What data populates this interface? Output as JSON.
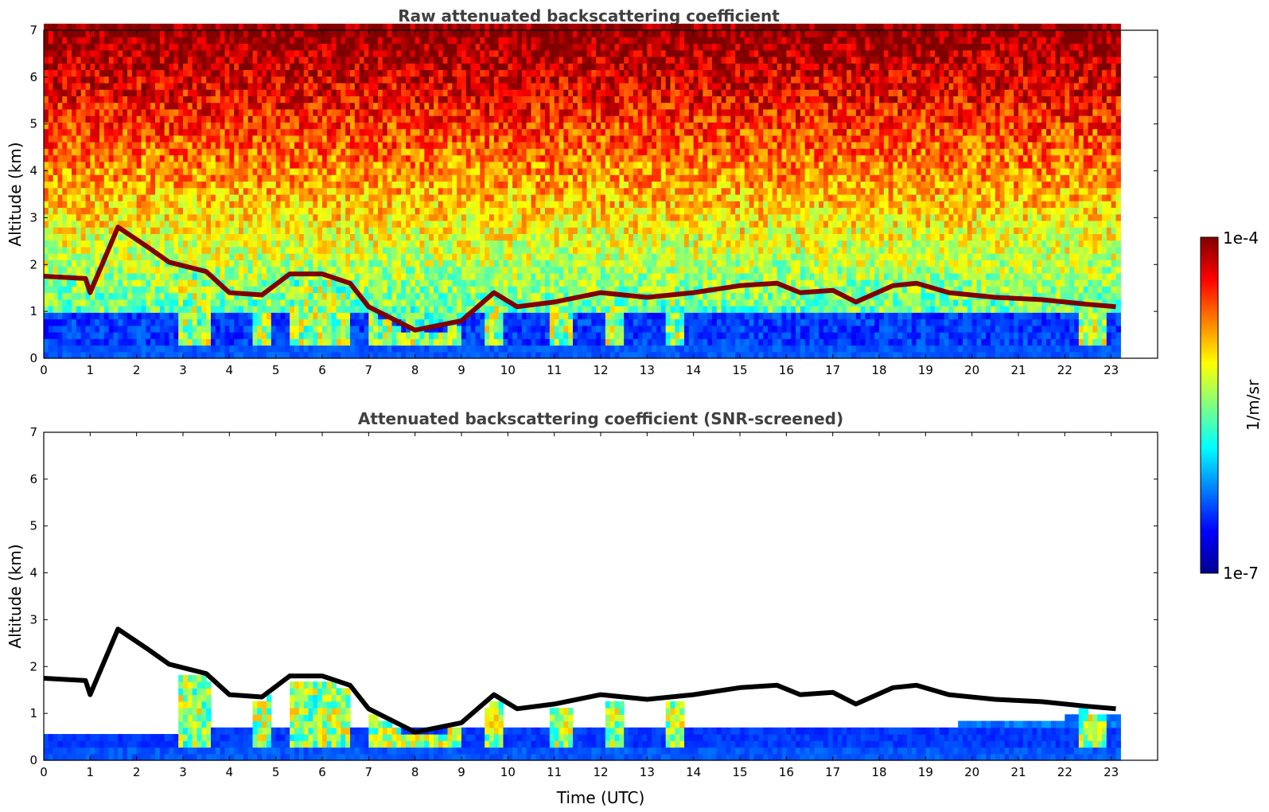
{
  "colors": {
    "jet": [
      "#00008f",
      "#0000ff",
      "#0080ff",
      "#00ffff",
      "#80ff80",
      "#ffff00",
      "#ff8000",
      "#ff0000",
      "#800000"
    ],
    "faint": "#e6e6fa",
    "black": "#000000"
  },
  "chart_data": [
    {
      "type": "heatmap",
      "title": "Raw attenuated backscattering coefficient",
      "ylabel": "Altitude (km)",
      "xlabel": "",
      "xlim": [
        0,
        24
      ],
      "ylim": [
        0,
        7
      ],
      "xticks": [
        "0",
        "1",
        "2",
        "3",
        "4",
        "5",
        "6",
        "7",
        "8",
        "9",
        "10",
        "11",
        "12",
        "13",
        "14",
        "15",
        "16",
        "17",
        "18",
        "19",
        "20",
        "21",
        "22",
        "23"
      ],
      "yticks": [
        "0",
        "1",
        "2",
        "3",
        "4",
        "5",
        "6",
        "7"
      ],
      "data_end_hour": 23.15,
      "cloud_layer": {
        "x": [
          0,
          0.9,
          1.0,
          1.6,
          2.2,
          2.7,
          3.5,
          4.0,
          4.7,
          5.3,
          6.0,
          6.6,
          7.0,
          8.0,
          9.0,
          9.7,
          10.2,
          11.0,
          12.0,
          13.0,
          14.0,
          15.0,
          15.8,
          16.3,
          17.0,
          17.5,
          18.3,
          18.8,
          19.5,
          20.5,
          21.5,
          22.5,
          23.1
        ],
        "y": [
          1.75,
          1.7,
          1.4,
          2.8,
          2.4,
          2.05,
          1.85,
          1.4,
          1.35,
          1.8,
          1.8,
          1.6,
          1.1,
          0.6,
          0.8,
          1.4,
          1.1,
          1.2,
          1.4,
          1.3,
          1.4,
          1.55,
          1.6,
          1.4,
          1.45,
          1.2,
          1.55,
          1.6,
          1.4,
          1.3,
          1.25,
          1.15,
          1.1
        ]
      },
      "aerosol_plumes": [
        [
          2.9,
          3.6
        ],
        [
          4.5,
          4.9
        ],
        [
          5.3,
          6.6
        ],
        [
          7.0,
          9.0
        ],
        [
          9.5,
          9.9
        ],
        [
          10.9,
          11.4
        ],
        [
          12.1,
          12.5
        ],
        [
          13.4,
          13.8
        ],
        [
          22.3,
          22.9
        ]
      ]
    },
    {
      "type": "heatmap",
      "title": "Attenuated backscattering coefficient (SNR-screened)",
      "ylabel": "Altitude (km)",
      "xlabel": "Time (UTC)",
      "xlim": [
        0,
        24
      ],
      "ylim": [
        0,
        7
      ],
      "xticks": [
        "0",
        "1",
        "2",
        "3",
        "4",
        "5",
        "6",
        "7",
        "8",
        "9",
        "10",
        "11",
        "12",
        "13",
        "14",
        "15",
        "16",
        "17",
        "18",
        "19",
        "20",
        "21",
        "22",
        "23"
      ],
      "yticks": [
        "0",
        "1",
        "2",
        "3",
        "4",
        "5",
        "6",
        "7"
      ],
      "data_end_hour": 23.15
    }
  ],
  "colorbar": {
    "label": "1/m/sr",
    "max_label": "1e-4",
    "min_label": "1e-7",
    "range": [
      1e-07,
      0.0001
    ],
    "scale": "log"
  }
}
